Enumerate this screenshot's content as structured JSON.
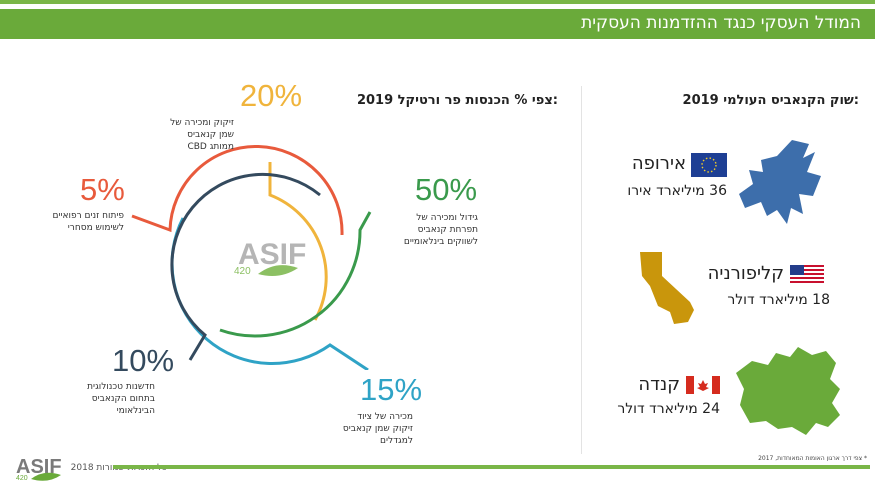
{
  "header": {
    "title": "המודל העסקי כנגד ההזדמנות העסקית"
  },
  "left_section": {
    "title": ":צפי % הכנסות פר ורטיקל 2019",
    "segments": [
      {
        "percent": "20%",
        "color": "#f0b43c",
        "desc_lines": [
          "זיקוק ומכירה של",
          "שמן קנאביס",
          "ממותג CBD"
        ]
      },
      {
        "percent": "50%",
        "color": "#3a9a4c",
        "desc_lines": [
          "גידול ומכירה של",
          "תפרחת קנאביס",
          "לשווקים בינלאומיים"
        ]
      },
      {
        "percent": "15%",
        "color": "#2fa3c6",
        "desc_lines": [
          "מכירה של ציוד",
          "זיקוק שמן קנאביס",
          "למגדלים"
        ]
      },
      {
        "percent": "10%",
        "color": "#344a5e",
        "desc_lines": [
          "חדשנות טכנולוגית",
          "בתחום הקנאביס",
          "הבינלאומי"
        ]
      },
      {
        "percent": "5%",
        "color": "#e85a3c",
        "desc_lines": [
          "פיתוח זנים רפואיים",
          "לשימוש מסחרי"
        ]
      }
    ],
    "center_logo": {
      "text": "ASIF",
      "sub": "420"
    }
  },
  "right_section": {
    "title": ":שוק הקנאביס העולמי 2019",
    "regions": [
      {
        "name": "אירופה",
        "value": "36 מיליארד אירו",
        "flag": "eu-flag-icon",
        "map": "europe-map",
        "color": "#3d6eab"
      },
      {
        "name": "קליפורניה",
        "value": "18 מיליארד דולר",
        "flag": "us-flag-icon",
        "map": "california-map",
        "color": "#c9960c"
      },
      {
        "name": "קנדה",
        "value": "24 מיליארד דולר",
        "flag": "canada-flag-icon",
        "map": "canada-map",
        "color": "#6aaa3a"
      }
    ],
    "footnote": "* צפי דרך ארגון האומות המאוחדות, 2017"
  },
  "footer": {
    "copyright": "כל הזכויות שמורות 2018",
    "logo_text": "ASIF",
    "logo_sub": "420"
  },
  "colors": {
    "brand_green": "#6aaa3a"
  }
}
